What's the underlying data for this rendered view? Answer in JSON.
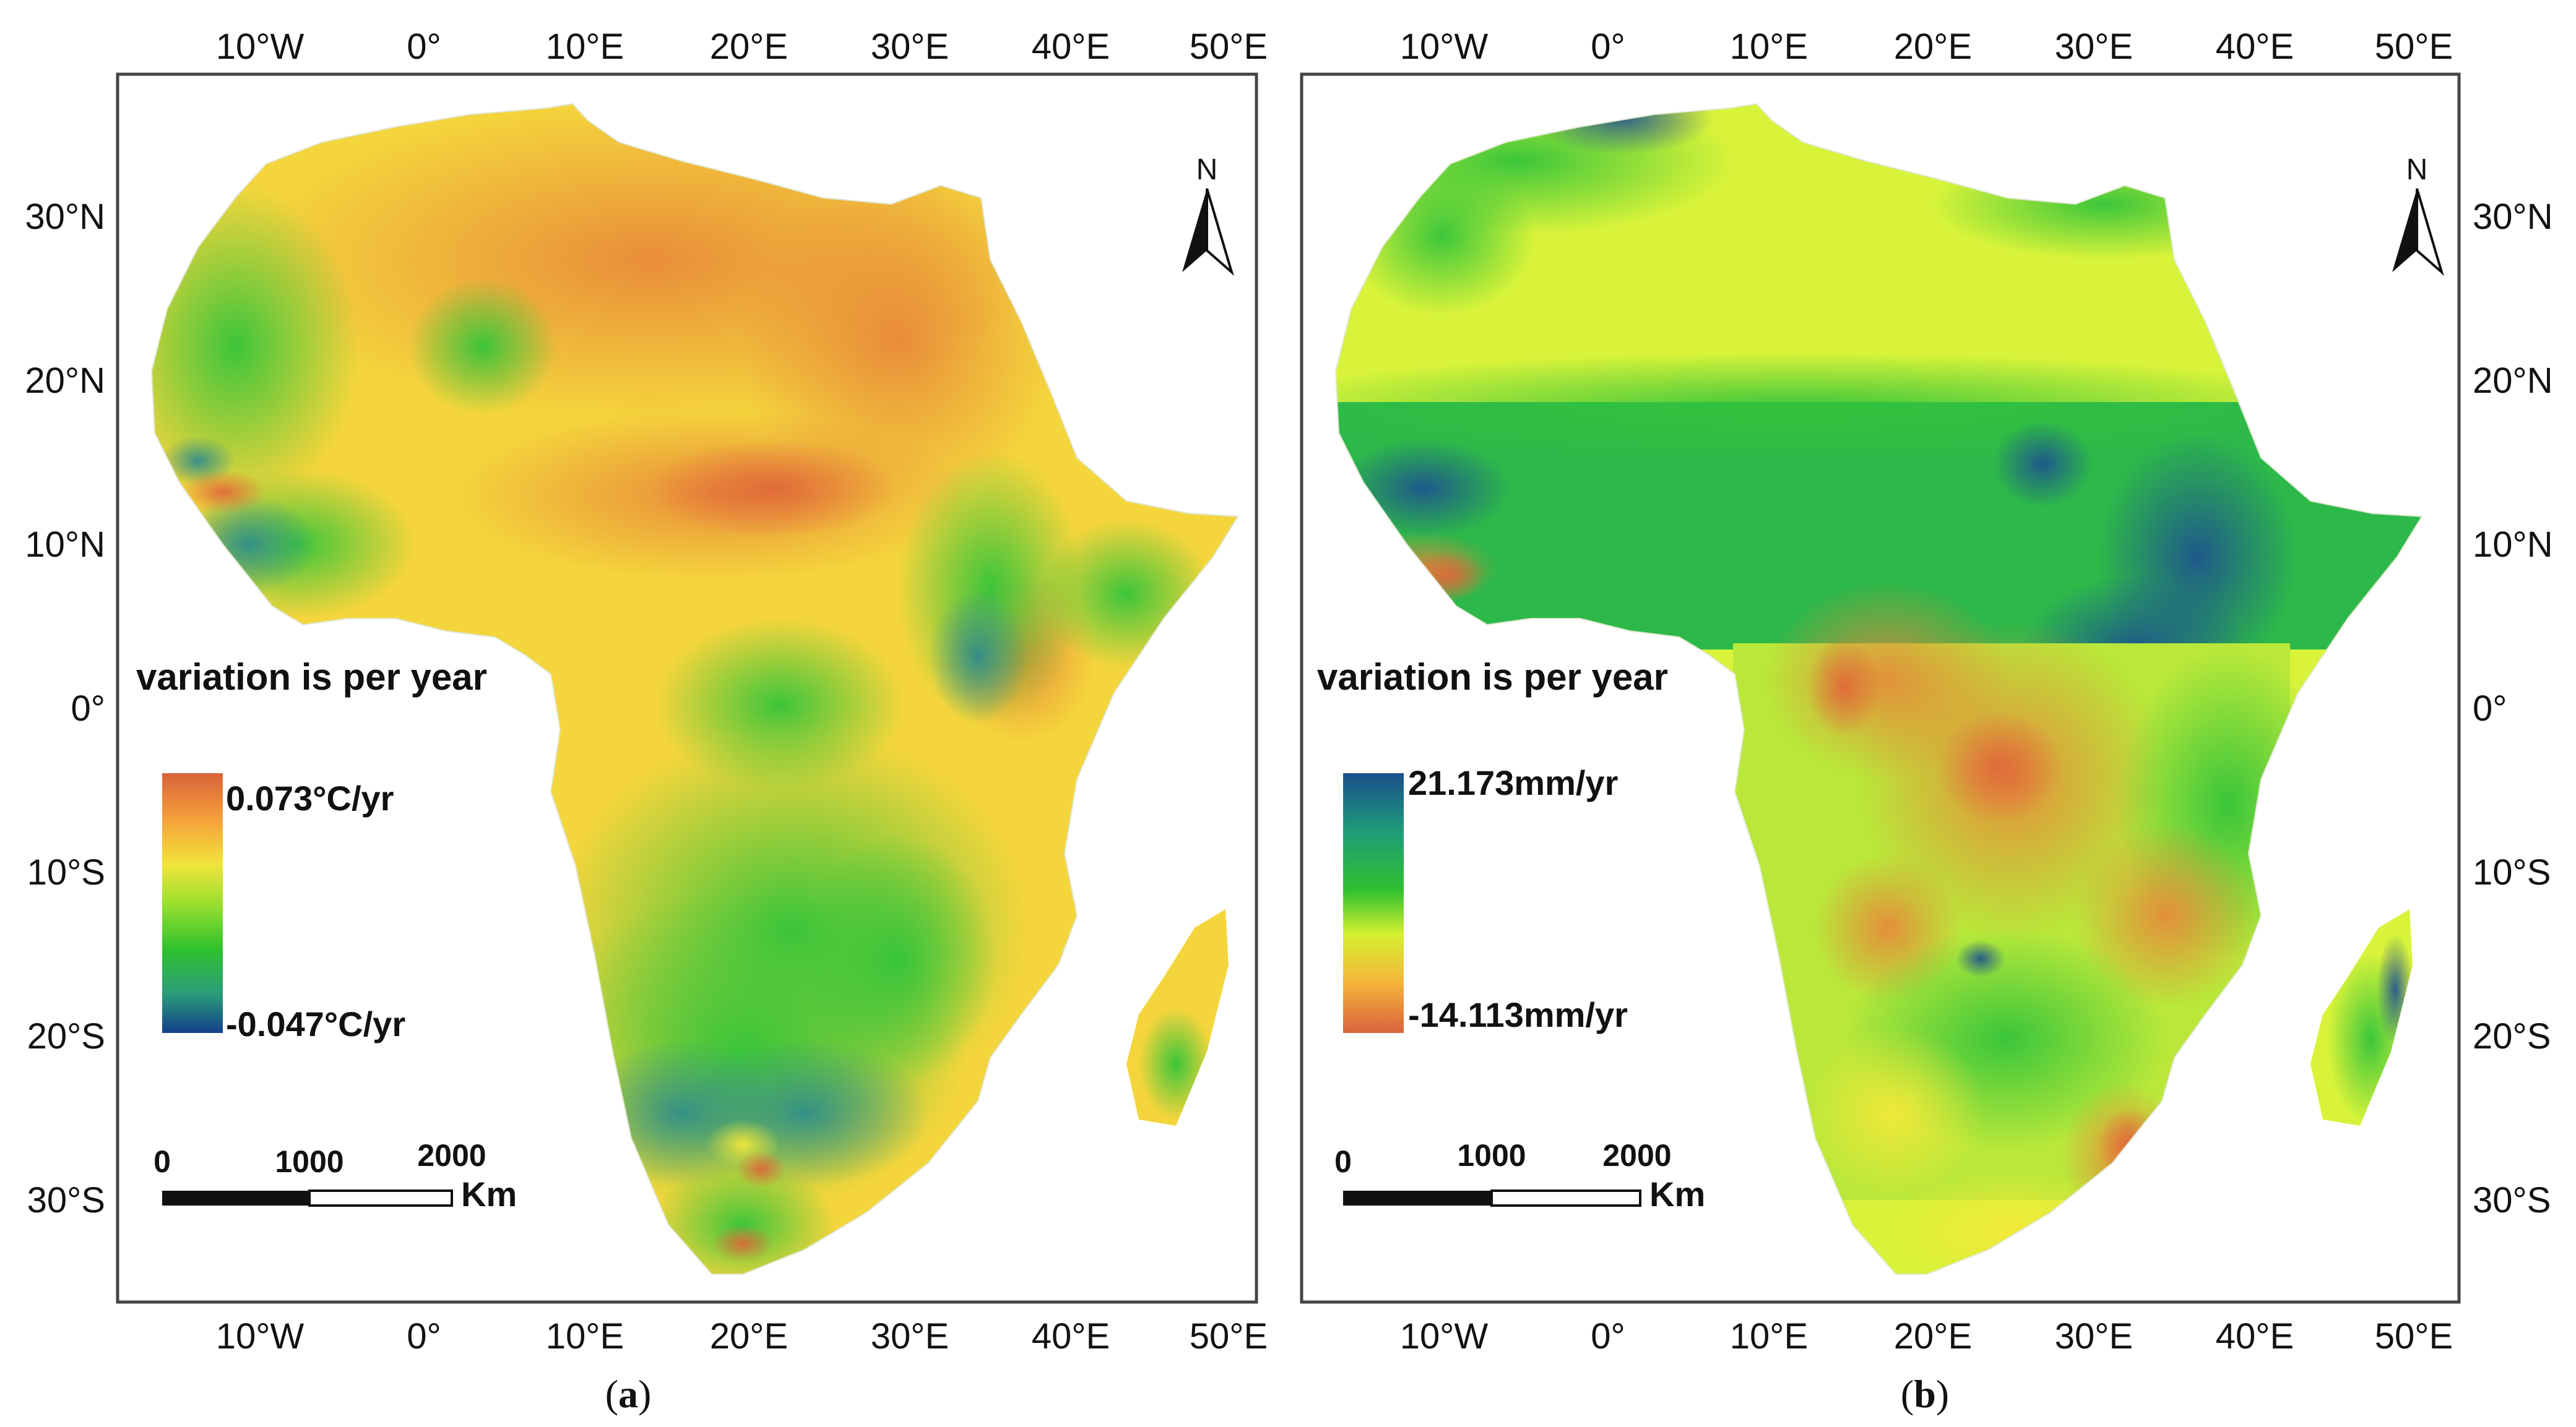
{
  "figure": {
    "panels": [
      {
        "id": "a",
        "caption_letter": "a",
        "north_label": "N",
        "x_ticks_top": [
          "10°W",
          "0°",
          "10°E",
          "20°E",
          "30°E",
          "40°E",
          "50°E"
        ],
        "x_ticks_bottom": [
          "10°W",
          "0°",
          "10°E",
          "20°E",
          "30°E",
          "40°E",
          "50°E"
        ],
        "y_ticks": [
          "30°N",
          "20°N",
          "10°N",
          "0°",
          "10°S",
          "20°S",
          "30°S"
        ],
        "y_axis_side": "left",
        "legend_title": "variation is per year",
        "legend_max": "0.073°C/yr",
        "legend_min": "-0.047°C/yr",
        "legend_colors": [
          "#d9623b",
          "#f5a13a",
          "#f2e43a",
          "#9be02e",
          "#2fc12f",
          "#2a9c7a",
          "#14408a"
        ],
        "scale_labels": [
          "0",
          "1000",
          "2000"
        ],
        "scale_unit": "Km",
        "map_palette": {
          "high": "#e8863a",
          "mid": "#f4c23c",
          "low": "#3cc83a",
          "min": "#2a8f86"
        }
      },
      {
        "id": "b",
        "caption_letter": "b",
        "north_label": "N",
        "x_ticks_top": [
          "10°W",
          "0°",
          "10°E",
          "20°E",
          "30°E",
          "40°E",
          "50°E"
        ],
        "x_ticks_bottom": [
          "10°W",
          "0°",
          "10°E",
          "20°E",
          "30°E",
          "40°E",
          "50°E"
        ],
        "y_ticks": [
          "30°N",
          "20°N",
          "10°N",
          "0°",
          "10°S",
          "20°S",
          "30°S"
        ],
        "y_axis_side": "right",
        "legend_title": "variation is per year",
        "legend_max": "21.173mm/yr",
        "legend_min": "-14.113mm/yr",
        "legend_colors": [
          "#1a4f8c",
          "#1f9a7a",
          "#2fc12f",
          "#d4f02e",
          "#f5b73a",
          "#d9623b"
        ],
        "scale_labels": [
          "0",
          "1000",
          "2000"
        ],
        "scale_unit": "Km",
        "map_palette": {
          "desert": "#d8f53a",
          "wet": "#2db84a",
          "verywet": "#1d5a96",
          "dry": "#e8873a"
        }
      }
    ]
  }
}
